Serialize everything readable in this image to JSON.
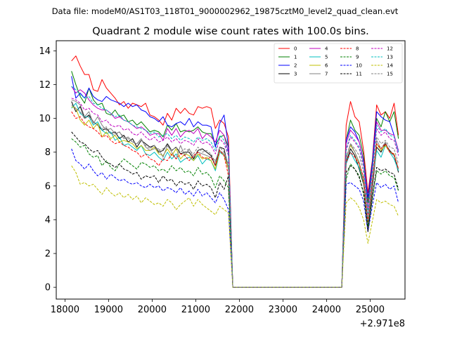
{
  "chart_data": {
    "type": "line",
    "suptitle": "Data file: modeM0/AS1T03_118T01_9000002962_19875cztM0_level2_quad_clean.evt",
    "title": "Quadrant 2 module wise count rates with 100.0s bins.",
    "xlabel": "",
    "ylabel": "",
    "x_offset_label": "+2.971e8",
    "xlim": [
      17800,
      25800
    ],
    "ylim": [
      -0.7,
      14.6
    ],
    "x_ticks": [
      18000,
      19000,
      20000,
      21000,
      22000,
      23000,
      24000,
      25000
    ],
    "x_tick_labels": [
      "18000",
      "19000",
      "20000",
      "21000",
      "22000",
      "23000",
      "24000",
      "25000"
    ],
    "y_ticks": [
      0,
      2,
      4,
      6,
      8,
      10,
      12,
      14
    ],
    "y_tick_labels": [
      "0",
      "2",
      "4",
      "6",
      "8",
      "10",
      "12",
      "14"
    ],
    "x_start": 18150,
    "x_step": 100,
    "gap_start_index": 36,
    "gap_end_index": 61,
    "legend_position": "top-right",
    "series": [
      {
        "name": "0",
        "color": "#ff0000",
        "dashed": false,
        "pre": [
          13.4,
          13.7,
          13.1,
          12.6,
          12.6,
          11.7,
          11.6,
          12.3,
          11.8,
          11.5,
          11.2,
          10.8,
          11.0,
          10.6,
          10.9,
          10.8,
          10.7,
          10.9,
          10.2,
          10.1,
          9.9,
          9.6,
          10.3,
          9.9,
          10.6,
          10.3,
          10.6,
          10.3,
          10.2,
          10.7,
          10.6,
          10.7,
          10.6,
          9.4,
          9.9,
          9.7,
          8.9
        ],
        "post": [
          9.6,
          11.0,
          10.1,
          9.8,
          8.1,
          5.6,
          7.5,
          10.8,
          10.2,
          10.4,
          10.0,
          10.9,
          9.0
        ]
      },
      {
        "name": "1",
        "color": "#008000",
        "dashed": false,
        "pre": [
          12.8,
          12.0,
          11.3,
          10.9,
          11.8,
          11.1,
          10.8,
          10.9,
          10.3,
          10.2,
          10.5,
          10.1,
          10.2,
          9.8,
          9.9,
          9.6,
          9.8,
          9.5,
          9.2,
          9.3,
          9.2,
          8.9,
          9.6,
          9.3,
          9.7,
          9.2,
          9.3,
          9.2,
          9.3,
          9.5,
          9.2,
          9.1,
          9.1,
          8.4,
          8.9,
          9.0,
          8.3
        ],
        "post": [
          8.7,
          9.9,
          9.3,
          9.0,
          7.8,
          5.0,
          7.4,
          10.0,
          9.5,
          10.4,
          9.8,
          10.4,
          8.8
        ]
      },
      {
        "name": "2",
        "color": "#0000ff",
        "dashed": false,
        "pre": [
          12.5,
          11.2,
          11.5,
          11.2,
          11.8,
          11.3,
          11.1,
          11.0,
          11.3,
          11.1,
          11.0,
          10.9,
          10.7,
          10.9,
          10.7,
          10.8,
          10.5,
          10.4,
          10.1,
          10.0,
          9.8,
          10.1,
          9.6,
          9.5,
          9.7,
          9.8,
          9.6,
          10.0,
          9.5,
          9.8,
          9.6,
          9.6,
          9.5,
          8.3,
          9.7,
          10.2,
          8.3
        ],
        "post": [
          8.7,
          9.5,
          9.2,
          8.6,
          7.5,
          5.3,
          7.3,
          10.4,
          10.1,
          9.9,
          9.8,
          9.0,
          8.0
        ]
      },
      {
        "name": "3",
        "color": "#000000",
        "dashed": false,
        "pre": [
          11.0,
          10.4,
          10.7,
          10.0,
          10.2,
          9.8,
          9.6,
          9.3,
          9.4,
          9.1,
          9.2,
          8.8,
          9.0,
          8.6,
          8.8,
          8.3,
          8.7,
          8.5,
          8.3,
          8.4,
          8.0,
          8.1,
          8.5,
          8.1,
          8.3,
          7.9,
          8.0,
          8.0,
          7.6,
          8.1,
          8.2,
          8.0,
          7.8,
          7.2,
          8.3,
          8.2,
          7.0
        ],
        "post": [
          7.4,
          8.2,
          7.8,
          7.0,
          6.1,
          3.3,
          5.8,
          8.3,
          8.0,
          8.5,
          8.1,
          7.8,
          6.8
        ]
      },
      {
        "name": "4",
        "color": "#bf00bf",
        "dashed": false,
        "pre": [
          11.9,
          11.5,
          11.7,
          11.5,
          11.1,
          10.8,
          10.6,
          10.5,
          10.5,
          10.3,
          10.0,
          10.1,
          9.9,
          9.8,
          9.6,
          9.4,
          9.5,
          9.3,
          9.0,
          9.1,
          9.1,
          8.7,
          9.4,
          9.0,
          9.4,
          8.9,
          9.2,
          9.3,
          9.1,
          9.4,
          8.8,
          9.1,
          8.9,
          8.6,
          9.3,
          9.0,
          8.0
        ],
        "post": [
          8.5,
          9.3,
          9.0,
          8.6,
          7.4,
          4.6,
          7.0,
          9.8,
          9.3,
          9.3,
          9.1,
          9.0,
          8.1
        ]
      },
      {
        "name": "5",
        "color": "#00bfbf",
        "dashed": false,
        "pre": [
          10.6,
          10.9,
          10.3,
          10.1,
          10.1,
          9.6,
          9.8,
          9.3,
          9.1,
          9.2,
          8.7,
          8.9,
          8.4,
          8.5,
          8.3,
          8.1,
          8.4,
          7.9,
          7.8,
          8.0,
          7.7,
          7.5,
          8.0,
          7.6,
          7.9,
          7.4,
          7.6,
          7.7,
          7.5,
          7.8,
          7.3,
          7.6,
          7.5,
          6.9,
          8.0,
          7.8,
          7.0
        ],
        "post": [
          7.3,
          8.0,
          7.5,
          7.1,
          6.2,
          3.7,
          6.2,
          8.1,
          7.7,
          8.4,
          8.0,
          7.6,
          6.9
        ]
      },
      {
        "name": "6",
        "color": "#bfbf00",
        "dashed": false,
        "pre": [
          10.7,
          10.6,
          9.9,
          9.6,
          9.9,
          9.4,
          9.7,
          8.9,
          9.2,
          8.8,
          9.0,
          8.6,
          8.7,
          8.6,
          8.5,
          8.2,
          8.4,
          8.1,
          8.1,
          8.3,
          7.9,
          7.8,
          8.2,
          7.8,
          8.2,
          7.6,
          7.9,
          7.8,
          7.5,
          7.9,
          7.6,
          7.7,
          7.5,
          7.0,
          8.1,
          7.8,
          7.0
        ],
        "post": [
          7.7,
          8.4,
          8.0,
          7.3,
          6.2,
          3.5,
          6.1,
          8.5,
          8.1,
          8.4,
          8.0,
          7.9,
          7.0
        ]
      },
      {
        "name": "7",
        "color": "#808080",
        "dashed": false,
        "pre": [
          11.1,
          11.0,
          10.8,
          10.1,
          10.4,
          9.7,
          10.1,
          9.6,
          9.3,
          9.4,
          9.1,
          9.2,
          8.8,
          8.9,
          8.6,
          8.5,
          8.8,
          8.3,
          8.1,
          8.2,
          8.2,
          7.7,
          8.4,
          8.0,
          7.6,
          8.4,
          7.8,
          8.2,
          7.7,
          8.0,
          7.9,
          7.8,
          7.7,
          7.5,
          8.1,
          7.9,
          7.1
        ],
        "post": [
          7.6,
          8.5,
          8.0,
          7.4,
          6.3,
          3.6,
          6.0,
          8.7,
          8.2,
          8.6,
          8.0,
          7.8,
          7.0
        ]
      },
      {
        "name": "8",
        "color": "#ff0000",
        "dashed": true,
        "pre": [
          10.4,
          10.0,
          10.1,
          9.7,
          9.5,
          9.4,
          9.2,
          8.9,
          9.0,
          8.7,
          8.5,
          8.6,
          8.4,
          8.3,
          8.1,
          8.0,
          7.7,
          7.9,
          7.6,
          7.5,
          7.2,
          7.6,
          7.5,
          7.9,
          7.6,
          7.9,
          7.8,
          7.5,
          7.8,
          8.0,
          7.7,
          7.6,
          7.7,
          7.2,
          8.1,
          7.8,
          6.6
        ],
        "post": [
          7.4,
          8.0,
          7.7,
          7.3,
          6.5,
          3.9,
          6.3,
          8.5,
          8.2,
          8.5,
          8.0,
          7.9,
          7.0
        ]
      },
      {
        "name": "9",
        "color": "#008000",
        "dashed": true,
        "pre": [
          8.8,
          8.6,
          8.3,
          8.4,
          7.9,
          7.7,
          7.8,
          7.2,
          7.5,
          7.1,
          6.9,
          7.3,
          7.6,
          7.4,
          7.2,
          7.0,
          7.4,
          7.3,
          7.1,
          7.2,
          6.9,
          7.0,
          6.8,
          7.2,
          6.9,
          7.1,
          6.8,
          6.9,
          6.6,
          7.1,
          6.7,
          6.8,
          6.5,
          5.9,
          6.6,
          6.3,
          5.9
        ],
        "post": [
          6.4,
          7.3,
          7.0,
          6.6,
          5.5,
          3.6,
          5.2,
          6.9,
          6.7,
          6.9,
          6.6,
          6.5,
          5.7
        ]
      },
      {
        "name": "10",
        "color": "#0000ff",
        "dashed": true,
        "pre": [
          8.2,
          7.5,
          7.3,
          7.0,
          7.3,
          6.9,
          6.6,
          6.8,
          6.4,
          6.7,
          6.5,
          6.3,
          6.4,
          6.2,
          6.1,
          6.2,
          6.0,
          5.9,
          6.1,
          5.9,
          6.0,
          5.7,
          5.9,
          5.8,
          5.6,
          5.9,
          5.5,
          5.7,
          5.4,
          5.8,
          5.4,
          5.6,
          5.3,
          5.0,
          5.6,
          5.2,
          4.6
        ],
        "post": [
          6.1,
          6.2,
          6.0,
          5.8,
          5.1,
          3.3,
          4.8,
          6.2,
          5.9,
          6.1,
          5.8,
          6.0,
          5.0
        ]
      },
      {
        "name": "11",
        "color": "#000000",
        "dashed": true,
        "pre": [
          9.2,
          8.9,
          8.6,
          8.5,
          8.2,
          8.0,
          8.1,
          7.7,
          7.4,
          7.3,
          7.1,
          7.3,
          7.0,
          6.9,
          6.7,
          6.8,
          6.4,
          6.6,
          6.5,
          6.6,
          6.2,
          6.6,
          6.3,
          6.4,
          6.0,
          6.3,
          6.1,
          6.2,
          5.8,
          6.3,
          6.0,
          6.1,
          5.9,
          5.3,
          6.2,
          5.8,
          6.6
        ],
        "post": [
          6.8,
          7.2,
          7.0,
          6.5,
          5.6,
          3.3,
          5.3,
          7.1,
          6.9,
          7.0,
          6.8,
          6.7,
          5.8
        ]
      },
      {
        "name": "12",
        "color": "#bf00bf",
        "dashed": true,
        "pre": [
          11.2,
          11.1,
          10.9,
          10.5,
          10.6,
          10.3,
          10.2,
          9.8,
          9.9,
          9.6,
          9.5,
          9.6,
          9.3,
          9.4,
          9.1,
          9.0,
          9.2,
          8.9,
          8.7,
          8.9,
          8.6,
          8.7,
          8.9,
          8.6,
          8.8,
          8.5,
          8.7,
          8.6,
          8.4,
          8.8,
          8.5,
          8.6,
          8.4,
          7.9,
          8.8,
          8.5,
          7.8
        ],
        "post": [
          8.1,
          8.9,
          8.6,
          8.2,
          7.1,
          4.3,
          6.8,
          9.4,
          9.0,
          9.2,
          8.8,
          8.7,
          7.8
        ]
      },
      {
        "name": "13",
        "color": "#00bfbf",
        "dashed": true,
        "pre": [
          11.9,
          11.7,
          11.4,
          11.2,
          11.3,
          10.9,
          10.8,
          10.6,
          10.5,
          10.3,
          10.1,
          10.2,
          9.9,
          9.8,
          9.6,
          9.5,
          9.4,
          9.3,
          9.1,
          9.2,
          8.9,
          9.0,
          9.1,
          8.8,
          9.0,
          8.7,
          8.9,
          8.8,
          8.6,
          8.9,
          8.7,
          8.8,
          8.6,
          8.1,
          9.0,
          8.7,
          7.9
        ],
        "post": [
          8.2,
          9.0,
          8.7,
          8.3,
          7.2,
          4.4,
          6.9,
          9.6,
          9.2,
          9.4,
          9.0,
          8.9,
          8.0
        ]
      },
      {
        "name": "14",
        "color": "#bfbf00",
        "dashed": true,
        "pre": [
          7.2,
          6.8,
          6.1,
          6.2,
          6.0,
          6.1,
          5.8,
          5.5,
          5.9,
          5.6,
          5.4,
          5.6,
          5.3,
          5.5,
          5.2,
          5.4,
          5.0,
          5.3,
          5.1,
          4.9,
          5.0,
          4.8,
          5.2,
          5.0,
          4.6,
          4.9,
          5.1,
          5.3,
          4.8,
          5.2,
          4.9,
          4.7,
          4.5,
          4.3,
          4.8,
          4.6,
          4.4
        ],
        "post": [
          5.0,
          5.3,
          5.1,
          4.7,
          4.0,
          2.6,
          3.9,
          5.2,
          5.0,
          5.1,
          4.9,
          4.8,
          4.2
        ]
      },
      {
        "name": "15",
        "color": "#808080",
        "dashed": true,
        "pre": [
          10.8,
          10.6,
          10.4,
          10.0,
          10.1,
          9.8,
          9.6,
          9.4,
          9.5,
          9.1,
          9.0,
          9.2,
          8.9,
          8.8,
          8.6,
          8.5,
          8.7,
          8.4,
          8.2,
          8.4,
          8.1,
          8.2,
          8.4,
          8.1,
          8.3,
          8.0,
          8.2,
          8.1,
          7.9,
          8.3,
          8.0,
          8.1,
          7.9,
          7.4,
          8.3,
          8.0,
          7.3
        ],
        "post": [
          7.7,
          8.5,
          8.2,
          7.8,
          6.8,
          4.0,
          6.4,
          8.9,
          8.5,
          8.7,
          8.3,
          8.2,
          7.3
        ]
      }
    ]
  }
}
